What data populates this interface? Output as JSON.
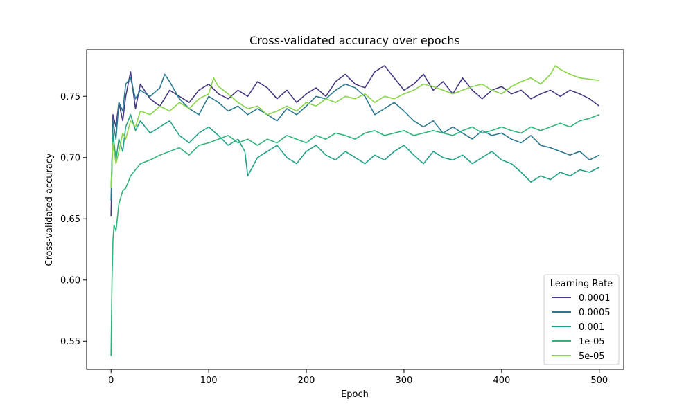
{
  "chart_data": {
    "type": "line",
    "title": "Cross-validated accuracy over epochs",
    "xlabel": "Epoch",
    "ylabel": "Cross-validated accuracy",
    "xlim": [
      -25,
      525
    ],
    "ylim": [
      0.527,
      0.788
    ],
    "xticks": [
      0,
      100,
      200,
      300,
      400,
      500
    ],
    "yticks": [
      0.55,
      0.6,
      0.65,
      0.7,
      0.75
    ],
    "ytick_labels": [
      "0.55",
      "0.60",
      "0.65",
      "0.70",
      "0.75"
    ],
    "grid": false,
    "legend": {
      "title": "Learning Rate",
      "placement": "lower-right"
    },
    "series": [
      {
        "name": "0.0001",
        "color": "#443983",
        "x": [
          0,
          2,
          5,
          8,
          12,
          15,
          20,
          25,
          30,
          40,
          50,
          60,
          70,
          80,
          90,
          100,
          110,
          120,
          130,
          140,
          150,
          160,
          170,
          180,
          190,
          200,
          210,
          220,
          230,
          240,
          250,
          260,
          270,
          280,
          290,
          300,
          310,
          320,
          330,
          340,
          350,
          360,
          370,
          380,
          390,
          400,
          410,
          420,
          430,
          440,
          450,
          460,
          470,
          480,
          490,
          495,
          500
        ],
        "values": [
          0.652,
          0.735,
          0.725,
          0.745,
          0.73,
          0.75,
          0.77,
          0.74,
          0.76,
          0.748,
          0.742,
          0.755,
          0.75,
          0.745,
          0.755,
          0.76,
          0.752,
          0.748,
          0.755,
          0.75,
          0.762,
          0.757,
          0.748,
          0.755,
          0.745,
          0.752,
          0.757,
          0.75,
          0.762,
          0.768,
          0.76,
          0.757,
          0.77,
          0.775,
          0.765,
          0.755,
          0.76,
          0.768,
          0.755,
          0.762,
          0.752,
          0.765,
          0.755,
          0.748,
          0.755,
          0.758,
          0.752,
          0.755,
          0.748,
          0.752,
          0.755,
          0.75,
          0.755,
          0.752,
          0.748,
          0.745,
          0.742
        ]
      },
      {
        "name": "0.0005",
        "color": "#2a788e",
        "x": [
          0,
          2,
          5,
          8,
          12,
          15,
          20,
          25,
          30,
          40,
          50,
          55,
          60,
          70,
          80,
          90,
          100,
          110,
          120,
          130,
          140,
          150,
          160,
          170,
          180,
          190,
          200,
          210,
          220,
          230,
          240,
          250,
          260,
          270,
          280,
          290,
          300,
          310,
          320,
          330,
          340,
          350,
          360,
          370,
          380,
          390,
          400,
          410,
          420,
          430,
          440,
          450,
          460,
          470,
          480,
          490,
          500
        ],
        "values": [
          0.665,
          0.73,
          0.715,
          0.745,
          0.738,
          0.76,
          0.765,
          0.748,
          0.755,
          0.75,
          0.757,
          0.768,
          0.762,
          0.748,
          0.74,
          0.735,
          0.75,
          0.745,
          0.738,
          0.742,
          0.735,
          0.74,
          0.735,
          0.73,
          0.74,
          0.735,
          0.742,
          0.75,
          0.748,
          0.755,
          0.76,
          0.757,
          0.75,
          0.735,
          0.74,
          0.745,
          0.738,
          0.73,
          0.725,
          0.73,
          0.72,
          0.725,
          0.72,
          0.715,
          0.722,
          0.718,
          0.72,
          0.715,
          0.712,
          0.718,
          0.71,
          0.708,
          0.705,
          0.702,
          0.705,
          0.698,
          0.702
        ]
      },
      {
        "name": "0.001",
        "color": "#22a187",
        "x": [
          0,
          2,
          5,
          8,
          12,
          15,
          20,
          25,
          30,
          40,
          50,
          60,
          70,
          80,
          90,
          100,
          110,
          120,
          130,
          137,
          140,
          150,
          160,
          170,
          180,
          190,
          200,
          210,
          220,
          230,
          240,
          250,
          260,
          270,
          280,
          290,
          300,
          310,
          320,
          330,
          340,
          350,
          360,
          370,
          380,
          390,
          400,
          410,
          420,
          430,
          440,
          450,
          460,
          470,
          480,
          490,
          500
        ],
        "values": [
          0.675,
          0.72,
          0.698,
          0.715,
          0.705,
          0.725,
          0.735,
          0.722,
          0.73,
          0.72,
          0.725,
          0.73,
          0.718,
          0.712,
          0.72,
          0.725,
          0.718,
          0.71,
          0.715,
          0.705,
          0.685,
          0.7,
          0.705,
          0.71,
          0.7,
          0.695,
          0.705,
          0.71,
          0.702,
          0.698,
          0.705,
          0.7,
          0.695,
          0.702,
          0.698,
          0.705,
          0.71,
          0.702,
          0.695,
          0.705,
          0.7,
          0.698,
          0.702,
          0.695,
          0.7,
          0.705,
          0.698,
          0.695,
          0.688,
          0.68,
          0.685,
          0.682,
          0.688,
          0.685,
          0.69,
          0.688,
          0.692
        ]
      },
      {
        "name": "1e-05",
        "color": "#2fb47c",
        "x": [
          0,
          1,
          2,
          3,
          5,
          8,
          12,
          15,
          20,
          25,
          30,
          40,
          50,
          60,
          70,
          80,
          90,
          100,
          110,
          120,
          130,
          140,
          150,
          160,
          170,
          180,
          190,
          200,
          210,
          220,
          230,
          240,
          250,
          260,
          270,
          280,
          290,
          300,
          310,
          320,
          330,
          340,
          350,
          360,
          370,
          380,
          390,
          400,
          410,
          420,
          430,
          440,
          450,
          460,
          470,
          480,
          490,
          500
        ],
        "values": [
          0.538,
          0.6,
          0.633,
          0.645,
          0.64,
          0.662,
          0.673,
          0.675,
          0.685,
          0.69,
          0.695,
          0.698,
          0.702,
          0.705,
          0.708,
          0.702,
          0.71,
          0.712,
          0.715,
          0.718,
          0.712,
          0.715,
          0.71,
          0.715,
          0.712,
          0.718,
          0.715,
          0.712,
          0.718,
          0.715,
          0.72,
          0.718,
          0.715,
          0.72,
          0.722,
          0.718,
          0.72,
          0.722,
          0.718,
          0.72,
          0.722,
          0.72,
          0.718,
          0.722,
          0.725,
          0.72,
          0.722,
          0.725,
          0.722,
          0.72,
          0.725,
          0.722,
          0.725,
          0.728,
          0.725,
          0.73,
          0.732,
          0.735
        ]
      },
      {
        "name": "5e-05",
        "color": "#87d549",
        "x": [
          0,
          2,
          5,
          8,
          12,
          15,
          20,
          25,
          30,
          40,
          50,
          60,
          70,
          80,
          90,
          100,
          105,
          110,
          120,
          130,
          140,
          150,
          160,
          170,
          180,
          190,
          200,
          210,
          220,
          230,
          240,
          250,
          260,
          270,
          280,
          290,
          300,
          310,
          320,
          330,
          340,
          350,
          360,
          370,
          380,
          390,
          400,
          410,
          420,
          430,
          440,
          450,
          455,
          460,
          470,
          480,
          490,
          500
        ],
        "values": [
          0.675,
          0.712,
          0.695,
          0.705,
          0.72,
          0.715,
          0.73,
          0.725,
          0.738,
          0.735,
          0.742,
          0.738,
          0.745,
          0.74,
          0.748,
          0.752,
          0.765,
          0.758,
          0.752,
          0.745,
          0.74,
          0.742,
          0.735,
          0.738,
          0.742,
          0.738,
          0.745,
          0.742,
          0.748,
          0.745,
          0.75,
          0.748,
          0.752,
          0.745,
          0.75,
          0.748,
          0.752,
          0.755,
          0.76,
          0.758,
          0.755,
          0.752,
          0.755,
          0.758,
          0.76,
          0.755,
          0.752,
          0.758,
          0.762,
          0.765,
          0.76,
          0.768,
          0.775,
          0.772,
          0.768,
          0.765,
          0.764,
          0.763
        ]
      }
    ]
  }
}
